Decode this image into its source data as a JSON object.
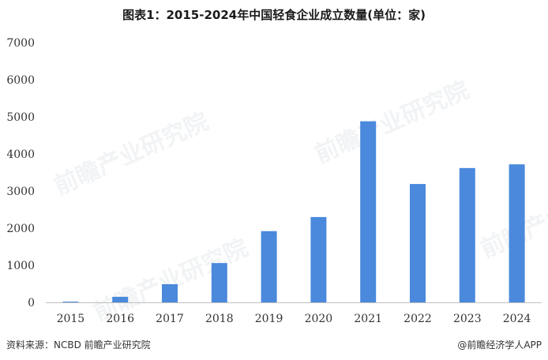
{
  "title": "图表1：2015-2024年中国轻食企业成立数量(单位：家)",
  "footer": {
    "source": "资料来源：NCBD 前瞻产业研究院",
    "credit": "@前瞻经济学人APP"
  },
  "watermark": "前瞻产业研究院",
  "colors": {
    "bar": "#4a89dc",
    "axis": "#bfbfbf"
  },
  "chart_data": {
    "type": "bar",
    "categories": [
      "2015",
      "2016",
      "2017",
      "2018",
      "2019",
      "2020",
      "2021",
      "2022",
      "2023",
      "2024"
    ],
    "values": [
      20,
      150,
      490,
      1060,
      1920,
      2300,
      4880,
      3190,
      3620,
      3720
    ],
    "ylim": [
      0,
      7000
    ],
    "yticks": [
      0,
      1000,
      2000,
      3000,
      4000,
      5000,
      6000,
      7000
    ],
    "grid": false,
    "legend": "none"
  }
}
